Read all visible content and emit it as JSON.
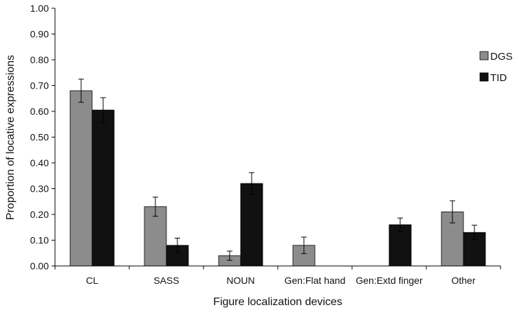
{
  "chart_data": {
    "type": "bar",
    "title": "",
    "xlabel": "Figure localization devices",
    "ylabel": "Proportion of locative expressions",
    "categories": [
      "CL",
      "SASS",
      "NOUN",
      "Gen:Flat hand",
      "Gen:Extd finger",
      "Other"
    ],
    "series": [
      {
        "name": "DGS",
        "color": "#8c8c8c",
        "values": [
          0.68,
          0.23,
          0.04,
          0.08,
          0.0,
          0.21
        ],
        "errors": [
          0.045,
          0.037,
          0.018,
          0.032,
          0.0,
          0.043
        ]
      },
      {
        "name": "TID",
        "color": "#111111",
        "values": [
          0.605,
          0.08,
          0.32,
          0.0,
          0.16,
          0.13
        ],
        "errors": [
          0.048,
          0.028,
          0.042,
          0.0,
          0.026,
          0.028
        ]
      }
    ],
    "ylim": [
      0,
      1.0
    ],
    "yticks": [
      "0.00",
      "0.10",
      "0.20",
      "0.30",
      "0.40",
      "0.50",
      "0.60",
      "0.70",
      "0.80",
      "0.90",
      "1.00"
    ],
    "grid": false,
    "legend_position": "right"
  }
}
